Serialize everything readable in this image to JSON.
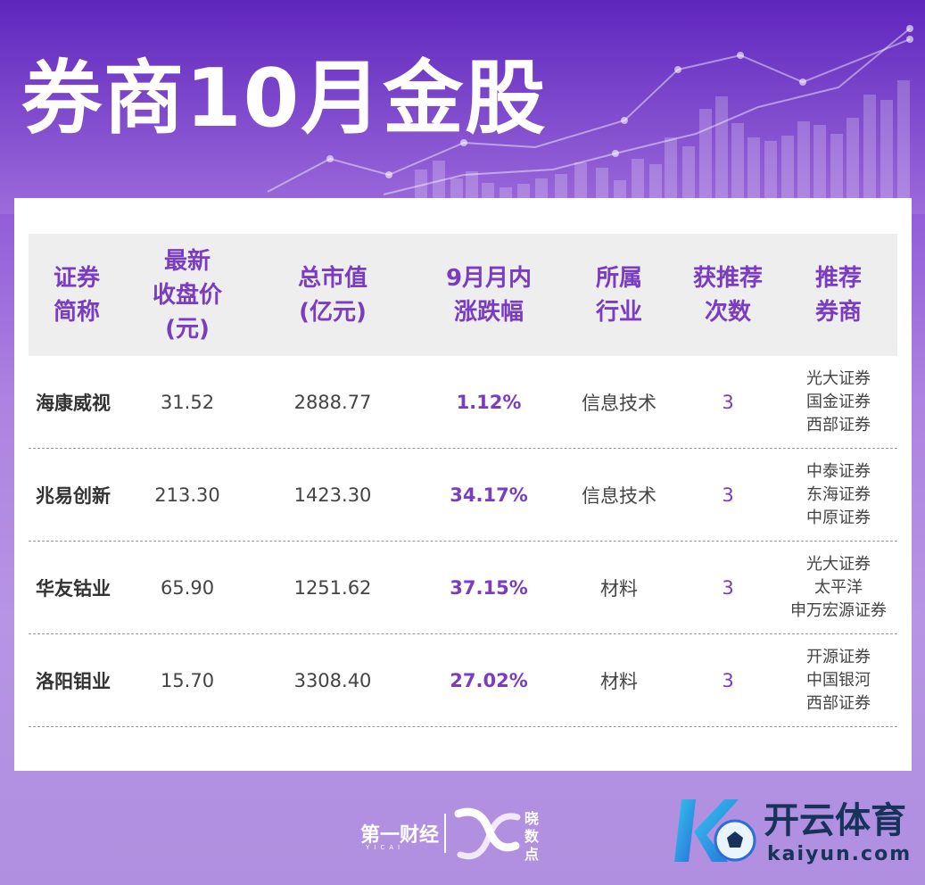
{
  "title": "券商10月金股",
  "table": {
    "headers": [
      "证券\n简称",
      "最新\n收盘价\n(元)",
      "总市值\n(亿元)",
      "9月月内\n涨跌幅",
      "所属\n行业",
      "获推荐\n次数",
      "推荐\n券商"
    ],
    "rows": [
      {
        "name": "海康威视",
        "price": "31.52",
        "market_cap": "2888.77",
        "change": "1.12%",
        "industry": "信息技术",
        "times": "3",
        "brokers": [
          "光大证券",
          "国金证券",
          "西部证券"
        ]
      },
      {
        "name": "兆易创新",
        "price": "213.30",
        "market_cap": "1423.30",
        "change": "34.17%",
        "industry": "信息技术",
        "times": "3",
        "brokers": [
          "中泰证券",
          "东海证券",
          "中原证券"
        ]
      },
      {
        "name": "华友钴业",
        "price": "65.90",
        "market_cap": "1251.62",
        "change": "37.15%",
        "industry": "材料",
        "times": "3",
        "brokers": [
          "光大证券",
          "太平洋",
          "申万宏源证券"
        ]
      },
      {
        "name": "洛阳钼业",
        "price": "15.70",
        "market_cap": "3308.40",
        "change": "27.02%",
        "industry": "材料",
        "times": "3",
        "brokers": [
          "开源证券",
          "中国银河",
          "西部证券"
        ]
      }
    ]
  },
  "footer": {
    "logo1": "第一财经",
    "logo1_sub": "YICAI",
    "logo2_vertical": "晓数点",
    "brand_title": "开云体育",
    "brand_url": "kaiyun.com"
  },
  "colors": {
    "accent": "#7a3cc0",
    "header_bg": "#eeeeee",
    "brand": "#17335c"
  },
  "icons": [
    "chart-bars-icon",
    "trend-line-icon",
    "xiaoshudian-logo-icon",
    "kaiyun-logo-icon"
  ]
}
